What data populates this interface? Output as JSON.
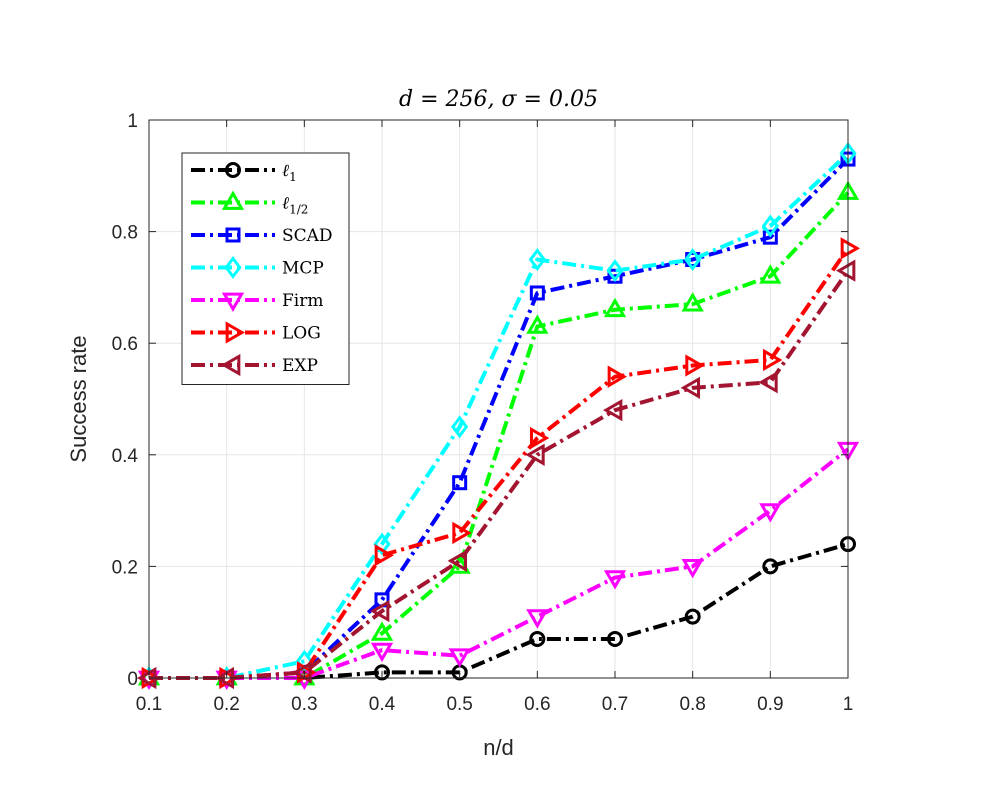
{
  "chart_data": {
    "type": "line",
    "title": "d = 256, σ = 0.05",
    "xlabel": "n/d",
    "ylabel": "Success rate",
    "x": [
      0.1,
      0.2,
      0.3,
      0.4,
      0.5,
      0.6,
      0.7,
      0.8,
      0.9,
      1.0
    ],
    "x_tick_labels": [
      "0.1",
      "0.2",
      "0.3",
      "0.4",
      "0.5",
      "0.6",
      "0.7",
      "0.8",
      "0.9",
      "1"
    ],
    "xlim": [
      0.1,
      1.0
    ],
    "ylim": [
      0,
      1
    ],
    "y_ticks": [
      0,
      0.2,
      0.4,
      0.6,
      0.8,
      1
    ],
    "y_tick_labels": [
      "0",
      "0.2",
      "0.4",
      "0.6",
      "0.8",
      "1"
    ],
    "grid": true,
    "legend_position": "top-left",
    "series": [
      {
        "name": "ℓ",
        "name_sub": "1",
        "color": "#000000",
        "marker": "circle",
        "values": [
          0,
          0,
          0,
          0.01,
          0.01,
          0.07,
          0.07,
          0.11,
          0.2,
          0.24
        ]
      },
      {
        "name": "ℓ",
        "name_sub": "1/2",
        "color": "#00ff00",
        "marker": "triangle-up",
        "values": [
          0,
          0,
          0,
          0.08,
          0.2,
          0.63,
          0.66,
          0.67,
          0.72,
          0.87
        ]
      },
      {
        "name": "SCAD",
        "color": "#0000ff",
        "marker": "square",
        "values": [
          0,
          0,
          0.01,
          0.14,
          0.35,
          0.69,
          0.72,
          0.75,
          0.79,
          0.93
        ]
      },
      {
        "name": "MCP",
        "color": "#00ffff",
        "marker": "diamond",
        "values": [
          0,
          0,
          0.03,
          0.24,
          0.45,
          0.75,
          0.73,
          0.75,
          0.81,
          0.94
        ]
      },
      {
        "name": "Firm",
        "color": "#ff00ff",
        "marker": "triangle-down",
        "values": [
          0,
          0,
          0,
          0.05,
          0.04,
          0.11,
          0.18,
          0.2,
          0.3,
          0.41
        ]
      },
      {
        "name": "LOG",
        "color": "#ff0000",
        "marker": "triangle-right",
        "values": [
          0,
          0,
          0.01,
          0.22,
          0.26,
          0.43,
          0.54,
          0.56,
          0.57,
          0.77
        ]
      },
      {
        "name": "EXP",
        "color": "#a2142f",
        "marker": "triangle-left",
        "values": [
          0,
          0,
          0.01,
          0.12,
          0.21,
          0.4,
          0.48,
          0.52,
          0.53,
          0.73
        ]
      }
    ]
  }
}
